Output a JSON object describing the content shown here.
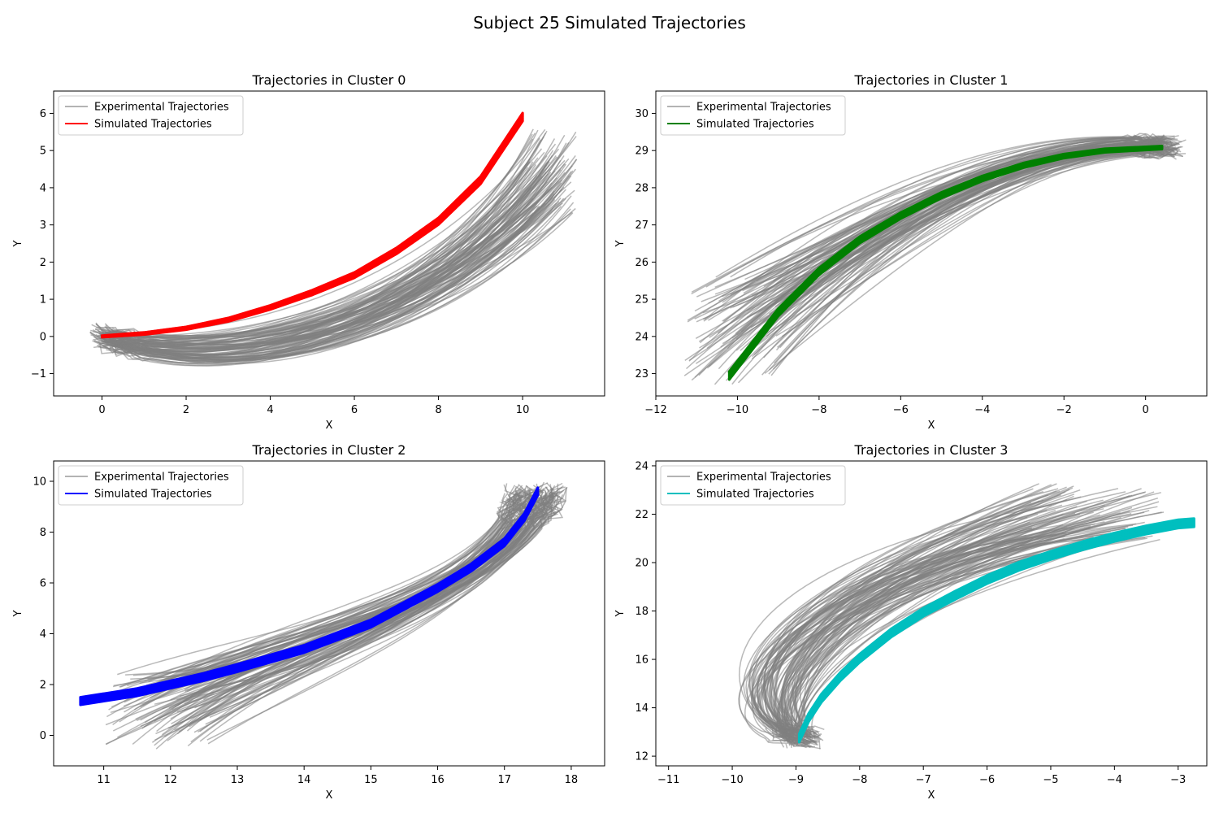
{
  "figure": {
    "title": "Subject 25 Simulated Trajectories"
  },
  "colors": {
    "experimental": "#808080",
    "frame": "#000000"
  },
  "chart_data": [
    {
      "type": "line",
      "title": "Trajectories in Cluster 0",
      "xlabel": "X",
      "ylabel": "Y",
      "xlim": [
        -1.15,
        11.95
      ],
      "ylim": [
        -1.6,
        6.6
      ],
      "xticks": [
        0,
        2,
        4,
        6,
        8,
        10
      ],
      "yticks": [
        -1,
        0,
        1,
        2,
        3,
        4,
        5,
        6
      ],
      "xtick_labels": [
        "0",
        "2",
        "4",
        "6",
        "8",
        "10"
      ],
      "ytick_labels": [
        "−1",
        "0",
        "1",
        "2",
        "3",
        "4",
        "5",
        "6"
      ],
      "legend": {
        "loc": "upper-left",
        "entries": [
          "Experimental Trajectories",
          "Simulated Trajectories"
        ]
      },
      "sim_color": "#ff0000",
      "experimental": {
        "count": 110,
        "start": [
          0,
          0
        ],
        "start_jitter": [
          0.25,
          0.25
        ],
        "end_x": [
          10.1,
          11.3
        ],
        "end_y": [
          3.3,
          5.6
        ],
        "mid_y": [
          -0.5,
          1.4
        ],
        "min_y": [
          -1.2,
          -0.1
        ],
        "dip_t": 0.2,
        "rise": 1.6
      },
      "simulated": {
        "x": [
          0,
          1,
          2,
          3,
          4,
          5,
          6,
          7,
          8,
          9,
          10
        ],
        "y": [
          0,
          0.08,
          0.22,
          0.45,
          0.78,
          1.18,
          1.65,
          2.3,
          3.1,
          4.2,
          5.9
        ],
        "band": 0.22
      }
    },
    {
      "type": "line",
      "title": "Trajectories in Cluster 1",
      "xlabel": "X",
      "ylabel": "Y",
      "xlim": [
        -12,
        1.5
      ],
      "ylim": [
        22.4,
        30.6
      ],
      "xticks": [
        -12,
        -10,
        -8,
        -6,
        -4,
        -2,
        0
      ],
      "yticks": [
        23,
        24,
        25,
        26,
        27,
        28,
        29,
        30
      ],
      "xtick_labels": [
        "−12",
        "−10",
        "−8",
        "−6",
        "−4",
        "−2",
        "0"
      ],
      "ytick_labels": [
        "23",
        "24",
        "25",
        "26",
        "27",
        "28",
        "29",
        "30"
      ],
      "legend": {
        "loc": "upper-left",
        "entries": [
          "Experimental Trajectories",
          "Simulated Trajectories"
        ]
      },
      "sim_color": "#008000",
      "experimental": {
        "count": 110,
        "start": [
          0.6,
          29.1
        ],
        "start_jitter": [
          0.3,
          0.25
        ],
        "end_x": [
          -11.3,
          -8.9
        ],
        "end_y": [
          22.7,
          25.6
        ],
        "mid_y": [
          26.8,
          28.8
        ],
        "min_y": [
          0,
          0
        ],
        "dip_t": 0,
        "rise": 0.6
      },
      "simulated": {
        "x": [
          0.4,
          -1,
          -2,
          -3,
          -4,
          -5,
          -6,
          -7,
          -8,
          -9,
          -10.2
        ],
        "y": [
          29.08,
          29.0,
          28.85,
          28.6,
          28.25,
          27.8,
          27.25,
          26.6,
          25.75,
          24.65,
          22.95
        ],
        "band": 0.22
      }
    },
    {
      "type": "line",
      "title": "Trajectories in Cluster 2",
      "xlabel": "X",
      "ylabel": "Y",
      "xlim": [
        10.25,
        18.5
      ],
      "ylim": [
        -1.2,
        10.8
      ],
      "xticks": [
        11,
        12,
        13,
        14,
        15,
        16,
        17,
        18
      ],
      "yticks": [
        0,
        2,
        4,
        6,
        8,
        10
      ],
      "xtick_labels": [
        "11",
        "12",
        "13",
        "14",
        "15",
        "16",
        "17",
        "18"
      ],
      "ytick_labels": [
        "0",
        "2",
        "4",
        "6",
        "8",
        "10"
      ],
      "legend": {
        "loc": "upper-left",
        "entries": [
          "Experimental Trajectories",
          "Simulated Trajectories"
        ]
      },
      "sim_color": "#0000ff",
      "experimental": {
        "count": 110,
        "start": [
          17.5,
          9.6
        ],
        "start_jitter": [
          0.35,
          0.3
        ],
        "end_x": [
          11.0,
          12.6
        ],
        "end_y": [
          -0.6,
          2.4
        ],
        "mid_y": [
          3.2,
          6.0
        ],
        "min_y": [
          0,
          0
        ],
        "dip_t": 0,
        "rise": 1.5
      },
      "simulated": {
        "x": [
          10.65,
          11.5,
          12.0,
          12.5,
          13.0,
          14.0,
          15.0,
          16.0,
          16.5,
          17.0,
          17.3,
          17.5
        ],
        "y": [
          1.35,
          1.7,
          2.0,
          2.3,
          2.65,
          3.4,
          4.4,
          5.8,
          6.6,
          7.6,
          8.6,
          9.6
        ],
        "band": 0.3
      }
    },
    {
      "type": "line",
      "title": "Trajectories in Cluster 3",
      "xlabel": "X",
      "ylabel": "Y",
      "xlim": [
        -11.2,
        -2.55
      ],
      "ylim": [
        11.6,
        24.2
      ],
      "xticks": [
        -11,
        -10,
        -9,
        -8,
        -7,
        -6,
        -5,
        -4,
        -3
      ],
      "yticks": [
        12,
        14,
        16,
        18,
        20,
        22,
        24
      ],
      "xtick_labels": [
        "−11",
        "−10",
        "−9",
        "−8",
        "−7",
        "−6",
        "−5",
        "−4",
        "−3"
      ],
      "ytick_labels": [
        "12",
        "14",
        "16",
        "18",
        "20",
        "22",
        "24"
      ],
      "legend": {
        "loc": "upper-left",
        "entries": [
          "Experimental Trajectories",
          "Simulated Trajectories"
        ]
      },
      "sim_color": "#00bfbf",
      "experimental": {
        "count": 110,
        "start": [
          -8.9,
          12.7
        ],
        "start_jitter": [
          0.25,
          0.3
        ],
        "end_x": [
          -5.4,
          -3.2
        ],
        "end_y": [
          20.9,
          23.4
        ],
        "mid_x": [
          -10.8,
          -9.0
        ],
        "mid_y": [
          14.2,
          17.2
        ],
        "min_y": [
          0,
          0
        ],
        "dip_t": 0,
        "rise": 0
      },
      "simulated": {
        "x": [
          -8.95,
          -8.8,
          -8.6,
          -8.3,
          -8.0,
          -7.5,
          -7.0,
          -6.5,
          -6.0,
          -5.5,
          -5.0,
          -4.5,
          -4.0,
          -3.5,
          -3.0,
          -2.75
        ],
        "y": [
          12.75,
          13.6,
          14.4,
          15.3,
          16.05,
          17.1,
          17.95,
          18.65,
          19.3,
          19.85,
          20.3,
          20.7,
          21.05,
          21.35,
          21.6,
          21.65
        ],
        "band": 0.35
      }
    }
  ]
}
